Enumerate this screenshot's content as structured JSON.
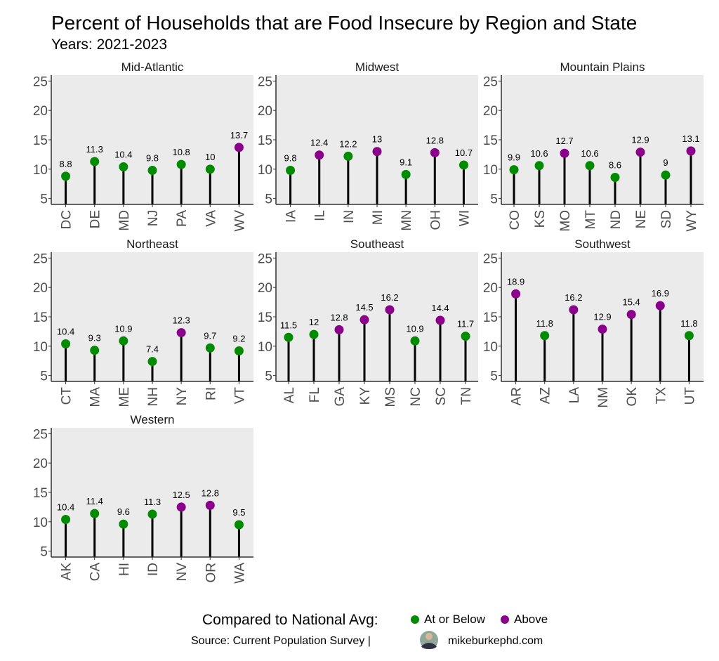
{
  "chart_data": {
    "type": "lollipop",
    "title": "Percent of Households that are Food Insecure by Region and State",
    "subtitle": "Years: 2021-2023",
    "ylim": [
      4,
      26
    ],
    "yticks": [
      5,
      10,
      15,
      20,
      25
    ],
    "grid": false,
    "legend": {
      "title": "Compared to National Avg:",
      "placement": "bottom",
      "entries": [
        {
          "label": "At or Below",
          "color": "#008B00"
        },
        {
          "label": "Above",
          "color": "#8B008B"
        }
      ]
    },
    "caption": {
      "source": "Source: Current Population Survey |",
      "site": "mikeburkephd.com"
    },
    "facets": [
      {
        "region": "Mid-Atlantic",
        "states": [
          "DC",
          "DE",
          "MD",
          "NJ",
          "PA",
          "VA",
          "WV"
        ],
        "values": [
          8.8,
          11.3,
          10.4,
          9.8,
          10.8,
          10,
          13.7
        ],
        "status": [
          "below",
          "below",
          "below",
          "below",
          "below",
          "below",
          "above"
        ]
      },
      {
        "region": "Midwest",
        "states": [
          "IA",
          "IL",
          "IN",
          "MI",
          "MN",
          "OH",
          "WI"
        ],
        "values": [
          9.8,
          12.4,
          12.2,
          13,
          9.1,
          12.8,
          10.7
        ],
        "status": [
          "below",
          "above",
          "below",
          "above",
          "below",
          "above",
          "below"
        ]
      },
      {
        "region": "Mountain Plains",
        "states": [
          "CO",
          "KS",
          "MO",
          "MT",
          "ND",
          "NE",
          "SD",
          "WY"
        ],
        "values": [
          9.9,
          10.6,
          12.7,
          10.6,
          8.6,
          12.9,
          9,
          13.1
        ],
        "status": [
          "below",
          "below",
          "above",
          "below",
          "below",
          "above",
          "below",
          "above"
        ]
      },
      {
        "region": "Northeast",
        "states": [
          "CT",
          "MA",
          "ME",
          "NH",
          "NY",
          "RI",
          "VT"
        ],
        "values": [
          10.4,
          9.3,
          10.9,
          7.4,
          12.3,
          9.7,
          9.2
        ],
        "status": [
          "below",
          "below",
          "below",
          "below",
          "above",
          "below",
          "below"
        ]
      },
      {
        "region": "Southeast",
        "states": [
          "AL",
          "FL",
          "GA",
          "KY",
          "MS",
          "NC",
          "SC",
          "TN"
        ],
        "values": [
          11.5,
          12,
          12.8,
          14.5,
          16.2,
          10.9,
          14.4,
          11.7
        ],
        "status": [
          "below",
          "below",
          "above",
          "above",
          "above",
          "below",
          "above",
          "below"
        ]
      },
      {
        "region": "Southwest",
        "states": [
          "AR",
          "AZ",
          "LA",
          "NM",
          "OK",
          "TX",
          "UT"
        ],
        "values": [
          18.9,
          11.8,
          16.2,
          12.9,
          15.4,
          16.9,
          11.8
        ],
        "status": [
          "above",
          "below",
          "above",
          "above",
          "above",
          "above",
          "below"
        ]
      },
      {
        "region": "Western",
        "states": [
          "AK",
          "CA",
          "HI",
          "ID",
          "NV",
          "OR",
          "WA"
        ],
        "values": [
          10.4,
          11.4,
          9.6,
          11.3,
          12.5,
          12.8,
          9.5
        ],
        "status": [
          "below",
          "below",
          "below",
          "below",
          "above",
          "above",
          "below"
        ]
      }
    ]
  },
  "colors": {
    "below": "#008B00",
    "above": "#8B008B",
    "panel_bg": "#EBEBEB",
    "stem": "#000000"
  }
}
